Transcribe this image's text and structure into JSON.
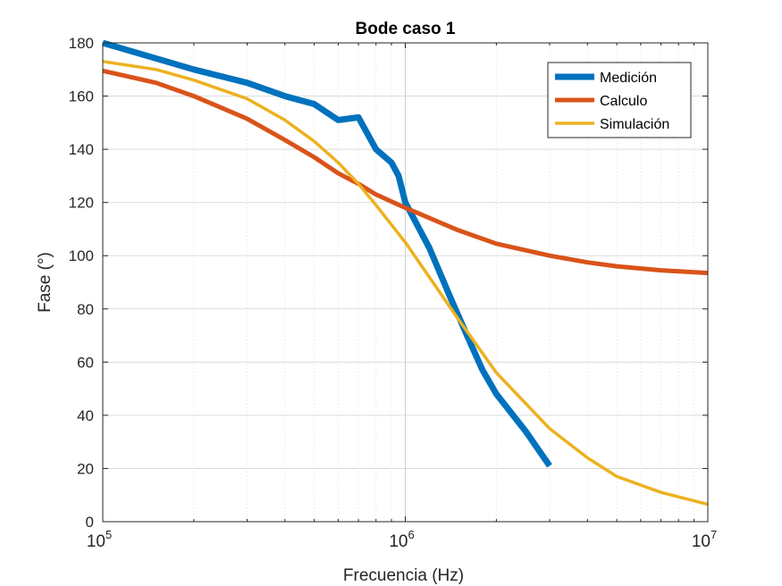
{
  "chart_data": {
    "type": "line",
    "title": "Bode caso 1",
    "xlabel": "Frecuencia (Hz)",
    "ylabel": "Fase (°)",
    "xscale": "log",
    "xlim": [
      100000,
      10000000
    ],
    "ylim": [
      0,
      180
    ],
    "x_ticks": [
      {
        "base": "10",
        "exp": "5"
      },
      {
        "base": "10",
        "exp": "6"
      },
      {
        "base": "10",
        "exp": "7"
      }
    ],
    "y_ticks": [
      "0",
      "20",
      "40",
      "60",
      "80",
      "100",
      "120",
      "140",
      "160",
      "180"
    ],
    "grid": true,
    "minor_grid_x": true,
    "legend_position": "top-right",
    "series": [
      {
        "name": "Medición",
        "color": "#0072BD",
        "x": [
          100000,
          200000,
          300000,
          400000,
          500000,
          600000,
          700000,
          800000,
          900000,
          950000,
          1000000,
          1200000,
          1400000,
          1600000,
          1800000,
          2000000,
          2500000,
          3000000
        ],
        "y": [
          180,
          170,
          165,
          160,
          157,
          151,
          152,
          140,
          135,
          130,
          120,
          103,
          85,
          70,
          57,
          48,
          34,
          21
        ]
      },
      {
        "name": "Calculo",
        "color": "#D95319",
        "x": [
          100000,
          150000,
          200000,
          300000,
          400000,
          500000,
          600000,
          700000,
          800000,
          1000000,
          1500000,
          2000000,
          3000000,
          4000000,
          5000000,
          7000000,
          10000000
        ],
        "y": [
          169.5,
          165,
          160,
          151.5,
          143.5,
          137,
          131,
          127,
          123,
          118,
          109.5,
          104.5,
          100,
          97.5,
          96,
          94.5,
          93.5
        ]
      },
      {
        "name": "Simulación",
        "color": "#EDB120",
        "x": [
          100000,
          150000,
          200000,
          300000,
          400000,
          500000,
          600000,
          700000,
          800000,
          1000000,
          1500000,
          2000000,
          3000000,
          4000000,
          5000000,
          7000000,
          10000000
        ],
        "y": [
          173,
          170,
          166,
          159,
          151,
          143,
          135,
          127,
          119,
          105,
          76,
          56,
          35,
          24,
          17,
          11,
          6.5
        ]
      }
    ]
  }
}
